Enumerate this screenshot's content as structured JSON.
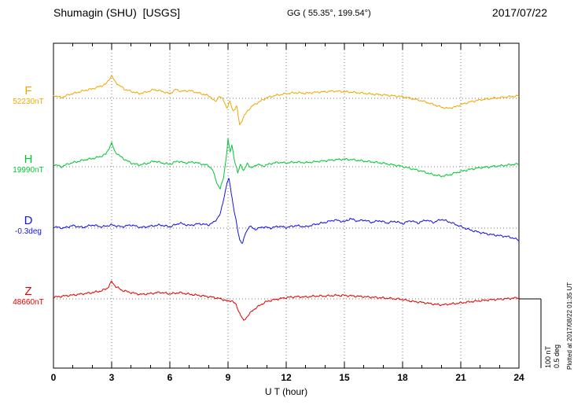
{
  "header": {
    "title": "Shumagin (SHU)  [USGS]",
    "gg_coords": "GG ( 55.35°, 199.54°)",
    "date": "2017/07/22"
  },
  "axes": {
    "x_label": "U T (hour)",
    "x_ticks": [
      0,
      3,
      6,
      9,
      12,
      15,
      18,
      21,
      24
    ],
    "x_range": [
      0,
      24
    ],
    "x_minor_step": 1,
    "grid": "dotted"
  },
  "scale_bar": {
    "label_nt": "100 nT",
    "label_deg": "0.5 deg"
  },
  "footnote": "Plotted at 2017/08/22 01:35 UT",
  "colors": {
    "axis": "#000000",
    "grid": "#777777",
    "background": "#ffffff"
  },
  "chart_data": {
    "type": "line",
    "x_unit": "hour",
    "x_range": [
      0,
      24
    ],
    "legend_position": "left",
    "scale": {
      "nT_per_div": 100,
      "deg_per_div": 0.5
    },
    "series": [
      {
        "name": "F",
        "label": "F",
        "value_label": "52230nT",
        "unit": "nT",
        "baseline_value": 52230,
        "color": "#f0a800",
        "keypoints": [
          [
            0,
            10
          ],
          [
            0.4,
            2
          ],
          [
            0.8,
            12
          ],
          [
            1.2,
            18
          ],
          [
            1.6,
            25
          ],
          [
            2,
            30
          ],
          [
            2.4,
            38
          ],
          [
            2.7,
            45
          ],
          [
            3,
            72
          ],
          [
            3.15,
            55
          ],
          [
            3.4,
            40
          ],
          [
            3.7,
            28
          ],
          [
            4,
            22
          ],
          [
            4.4,
            15
          ],
          [
            4.8,
            20
          ],
          [
            5.2,
            28
          ],
          [
            5.6,
            22
          ],
          [
            6,
            15
          ],
          [
            6.3,
            28
          ],
          [
            6.6,
            22
          ],
          [
            7,
            25
          ],
          [
            7.4,
            18
          ],
          [
            7.8,
            12
          ],
          [
            8.1,
            5
          ],
          [
            8.35,
            -12
          ],
          [
            8.55,
            8
          ],
          [
            8.75,
            -5
          ],
          [
            8.95,
            -30
          ],
          [
            9.1,
            -10
          ],
          [
            9.25,
            -40
          ],
          [
            9.45,
            -25
          ],
          [
            9.6,
            -85
          ],
          [
            9.8,
            -60
          ],
          [
            10,
            -40
          ],
          [
            10.3,
            -22
          ],
          [
            10.7,
            -8
          ],
          [
            11,
            2
          ],
          [
            11.5,
            10
          ],
          [
            12,
            15
          ],
          [
            12.5,
            18
          ],
          [
            13,
            16
          ],
          [
            13.5,
            19
          ],
          [
            14,
            21
          ],
          [
            14.5,
            23
          ],
          [
            15,
            21
          ],
          [
            15.5,
            19
          ],
          [
            16,
            16
          ],
          [
            16.5,
            13
          ],
          [
            17,
            11
          ],
          [
            17.5,
            8
          ],
          [
            18,
            5
          ],
          [
            18.5,
            -1
          ],
          [
            19,
            -8
          ],
          [
            19.5,
            -18
          ],
          [
            20,
            -28
          ],
          [
            20.3,
            -32
          ],
          [
            20.7,
            -28
          ],
          [
            21,
            -20
          ],
          [
            21.5,
            -11
          ],
          [
            22,
            -5
          ],
          [
            22.5,
            -1
          ],
          [
            23,
            2
          ],
          [
            23.5,
            5
          ],
          [
            24,
            8
          ]
        ]
      },
      {
        "name": "H",
        "label": "H",
        "value_label": "19990nT",
        "unit": "nT",
        "baseline_value": 19990,
        "color": "#00c832",
        "keypoints": [
          [
            0,
            8
          ],
          [
            0.4,
            0
          ],
          [
            0.8,
            10
          ],
          [
            1.2,
            16
          ],
          [
            1.6,
            22
          ],
          [
            2,
            26
          ],
          [
            2.4,
            32
          ],
          [
            2.7,
            40
          ],
          [
            3,
            75
          ],
          [
            3.15,
            50
          ],
          [
            3.4,
            35
          ],
          [
            3.7,
            22
          ],
          [
            4,
            12
          ],
          [
            4.4,
            6
          ],
          [
            4.8,
            10
          ],
          [
            5.2,
            18
          ],
          [
            5.6,
            12
          ],
          [
            6,
            8
          ],
          [
            6.4,
            18
          ],
          [
            6.8,
            12
          ],
          [
            7.2,
            15
          ],
          [
            7.6,
            9
          ],
          [
            8,
            4
          ],
          [
            8.2,
            -10
          ],
          [
            8.45,
            -55
          ],
          [
            8.6,
            -70
          ],
          [
            8.75,
            -40
          ],
          [
            8.9,
            25
          ],
          [
            9,
            88
          ],
          [
            9.1,
            45
          ],
          [
            9.2,
            70
          ],
          [
            9.35,
            15
          ],
          [
            9.5,
            -20
          ],
          [
            9.65,
            10
          ],
          [
            9.8,
            -15
          ],
          [
            10,
            12
          ],
          [
            10.2,
            -5
          ],
          [
            10.5,
            8
          ],
          [
            10.8,
            2
          ],
          [
            11.2,
            10
          ],
          [
            11.6,
            14
          ],
          [
            12,
            12
          ],
          [
            12.5,
            15
          ],
          [
            13,
            13
          ],
          [
            13.5,
            16
          ],
          [
            14,
            19
          ],
          [
            14.5,
            22
          ],
          [
            15,
            24
          ],
          [
            15.5,
            22
          ],
          [
            16,
            18
          ],
          [
            16.5,
            15
          ],
          [
            17,
            11
          ],
          [
            17.5,
            6
          ],
          [
            18,
            1
          ],
          [
            18.5,
            -7
          ],
          [
            19,
            -14
          ],
          [
            19.5,
            -24
          ],
          [
            20,
            -30
          ],
          [
            20.4,
            -26
          ],
          [
            20.8,
            -18
          ],
          [
            21.2,
            -12
          ],
          [
            21.6,
            -7
          ],
          [
            22,
            -3
          ],
          [
            22.5,
            0
          ],
          [
            23,
            3
          ],
          [
            23.5,
            6
          ],
          [
            24,
            9
          ]
        ]
      },
      {
        "name": "D",
        "label": "D",
        "value_label": "-0.3deg",
        "unit": "deg",
        "baseline_value": -0.3,
        "color": "#1414e6",
        "keypoints": [
          [
            0,
            0.02
          ],
          [
            0.5,
            0
          ],
          [
            1,
            0.04
          ],
          [
            1.5,
            0.01
          ],
          [
            2,
            0.05
          ],
          [
            2.5,
            0.02
          ],
          [
            3,
            0.05
          ],
          [
            3.5,
            0.02
          ],
          [
            4,
            0.05
          ],
          [
            4.5,
            0.01
          ],
          [
            5,
            0.03
          ],
          [
            5.5,
            0.05
          ],
          [
            6,
            0.02
          ],
          [
            6.5,
            0.08
          ],
          [
            7,
            0.04
          ],
          [
            7.5,
            0.07
          ],
          [
            8,
            0.05
          ],
          [
            8.3,
            0.1
          ],
          [
            8.6,
            0.22
          ],
          [
            8.8,
            0.5
          ],
          [
            8.95,
            0.72
          ],
          [
            9.05,
            0.78
          ],
          [
            9.15,
            0.6
          ],
          [
            9.3,
            0.3
          ],
          [
            9.45,
            0.05
          ],
          [
            9.6,
            -0.18
          ],
          [
            9.75,
            -0.25
          ],
          [
            9.9,
            -0.08
          ],
          [
            10.1,
            0.03
          ],
          [
            10.4,
            -0.02
          ],
          [
            10.8,
            0.02
          ],
          [
            11.2,
            0
          ],
          [
            11.6,
            0.03
          ],
          [
            12,
            0.01
          ],
          [
            12.5,
            0.04
          ],
          [
            13,
            0.02
          ],
          [
            13.5,
            0.06
          ],
          [
            14,
            0.09
          ],
          [
            14.5,
            0.13
          ],
          [
            15,
            0.1
          ],
          [
            15.3,
            0.15
          ],
          [
            15.7,
            0.11
          ],
          [
            16,
            0.13
          ],
          [
            16.4,
            0.09
          ],
          [
            16.8,
            0.12
          ],
          [
            17.2,
            0.08
          ],
          [
            17.6,
            0.11
          ],
          [
            18,
            0.07
          ],
          [
            18.4,
            0.12
          ],
          [
            18.8,
            0.08
          ],
          [
            19.2,
            0.13
          ],
          [
            19.6,
            0.09
          ],
          [
            20,
            0.14
          ],
          [
            20.4,
            0.1
          ],
          [
            20.8,
            0.05
          ],
          [
            21.2,
            0
          ],
          [
            21.6,
            -0.04
          ],
          [
            22,
            -0.07
          ],
          [
            22.5,
            -0.1
          ],
          [
            23,
            -0.12
          ],
          [
            23.5,
            -0.14
          ],
          [
            24,
            -0.19
          ]
        ]
      },
      {
        "name": "Z",
        "label": "Z",
        "value_label": "48660nT",
        "unit": "nT",
        "baseline_value": 48660,
        "color": "#e60000",
        "keypoints": [
          [
            0,
            5
          ],
          [
            0.5,
            9
          ],
          [
            1,
            12
          ],
          [
            1.5,
            16
          ],
          [
            2,
            20
          ],
          [
            2.5,
            26
          ],
          [
            2.8,
            35
          ],
          [
            3,
            55
          ],
          [
            3.2,
            40
          ],
          [
            3.5,
            28
          ],
          [
            4,
            20
          ],
          [
            4.5,
            14
          ],
          [
            5,
            17
          ],
          [
            5.5,
            21
          ],
          [
            6,
            16
          ],
          [
            6.5,
            20
          ],
          [
            7,
            15
          ],
          [
            7.5,
            11
          ],
          [
            8,
            7
          ],
          [
            8.5,
            2
          ],
          [
            8.8,
            -3
          ],
          [
            9,
            -8
          ],
          [
            9.2,
            -5
          ],
          [
            9.4,
            -18
          ],
          [
            9.6,
            -45
          ],
          [
            9.8,
            -70
          ],
          [
            10,
            -55
          ],
          [
            10.3,
            -35
          ],
          [
            10.7,
            -18
          ],
          [
            11,
            -8
          ],
          [
            11.5,
            -1
          ],
          [
            12,
            4
          ],
          [
            12.5,
            7
          ],
          [
            13,
            6
          ],
          [
            13.5,
            9
          ],
          [
            14,
            9
          ],
          [
            14.5,
            11
          ],
          [
            15,
            11
          ],
          [
            15.5,
            9
          ],
          [
            16,
            7
          ],
          [
            16.5,
            5
          ],
          [
            17,
            3
          ],
          [
            17.5,
            1
          ],
          [
            18,
            -2
          ],
          [
            18.5,
            -8
          ],
          [
            19,
            -11
          ],
          [
            19.5,
            -16
          ],
          [
            20,
            -19
          ],
          [
            20.5,
            -16
          ],
          [
            21,
            -13
          ],
          [
            21.5,
            -9
          ],
          [
            22,
            -6
          ],
          [
            22.5,
            -3
          ],
          [
            23,
            -1
          ],
          [
            23.5,
            1
          ],
          [
            24,
            4
          ]
        ]
      }
    ]
  }
}
